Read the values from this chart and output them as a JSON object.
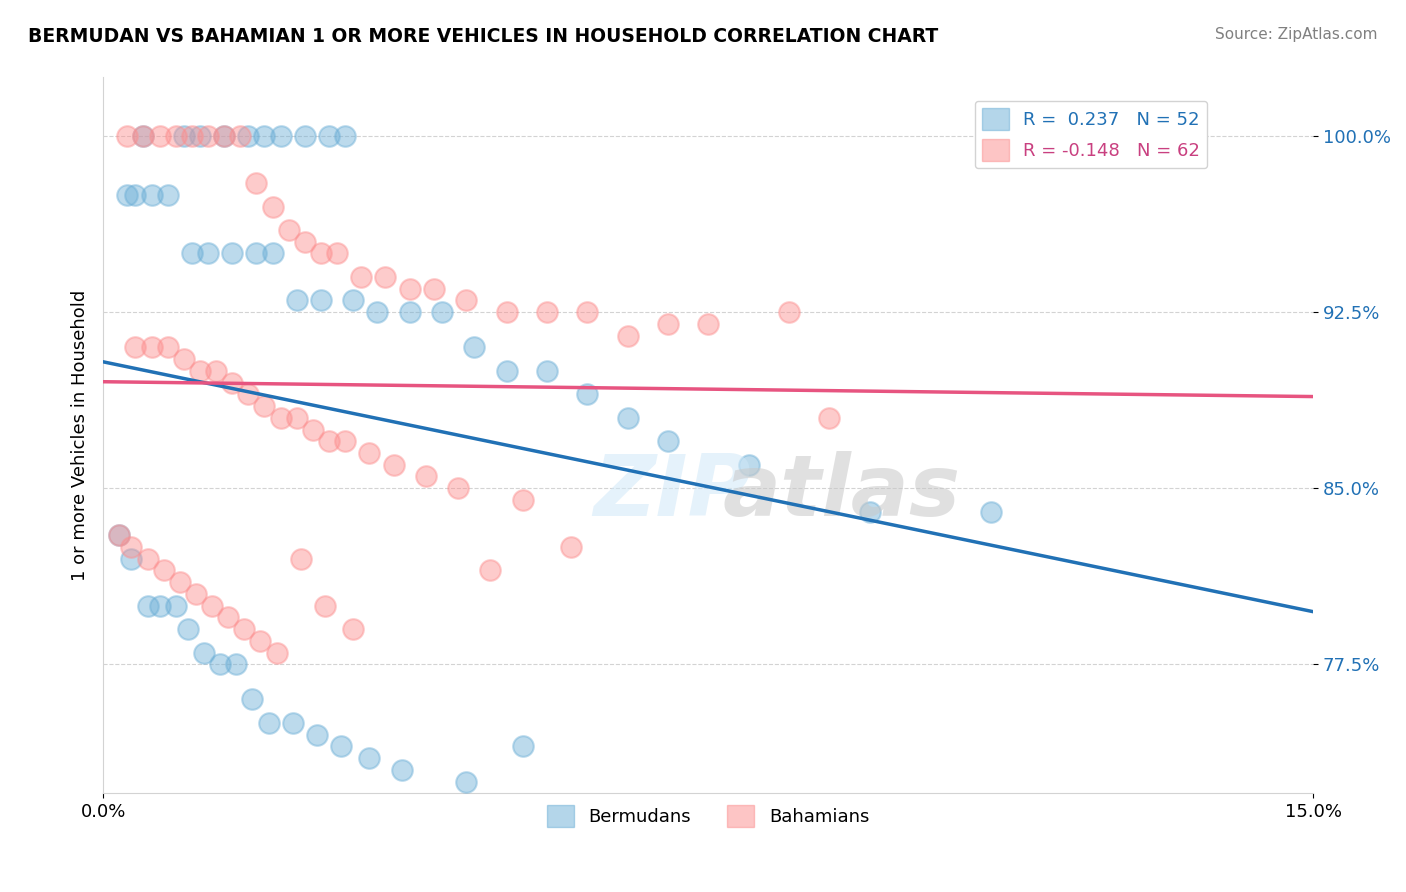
{
  "title": "BERMUDAN VS BAHAMIAN 1 OR MORE VEHICLES IN HOUSEHOLD CORRELATION CHART",
  "source_text": "Source: ZipAtlas.com",
  "ylabel": "1 or more Vehicles in Household",
  "xlim": [
    0.0,
    15.0
  ],
  "ylim": [
    72.0,
    102.5
  ],
  "yticks": [
    77.5,
    85.0,
    92.5,
    100.0
  ],
  "ytick_labels": [
    "77.5%",
    "85.0%",
    "92.5%",
    "100.0%"
  ],
  "bermudans_color": "#6baed6",
  "bahamians_color": "#fc8d8d",
  "line_bermudans_color": "#2171b5",
  "line_bahamians_color": "#e75480",
  "legend_text_blue": "#2171b5",
  "legend_text_pink": "#c94080",
  "R_bermudans": 0.237,
  "N_bermudans": 52,
  "R_bahamians": -0.148,
  "N_bahamians": 62,
  "bermudans_x": [
    0.5,
    1.0,
    1.2,
    1.5,
    1.8,
    2.0,
    2.2,
    2.5,
    2.8,
    3.0,
    0.3,
    0.4,
    0.6,
    0.8,
    1.1,
    1.3,
    1.6,
    1.9,
    2.1,
    2.4,
    2.7,
    3.1,
    3.4,
    3.8,
    4.2,
    4.6,
    5.0,
    5.5,
    6.0,
    6.5,
    7.0,
    8.0,
    9.5,
    11.0,
    0.2,
    0.35,
    0.55,
    0.7,
    0.9,
    1.05,
    1.25,
    1.45,
    1.65,
    1.85,
    2.05,
    2.35,
    2.65,
    2.95,
    3.3,
    3.7,
    4.5,
    5.2
  ],
  "bermudans_y": [
    100.0,
    100.0,
    100.0,
    100.0,
    100.0,
    100.0,
    100.0,
    100.0,
    100.0,
    100.0,
    97.5,
    97.5,
    97.5,
    97.5,
    95.0,
    95.0,
    95.0,
    95.0,
    95.0,
    93.0,
    93.0,
    93.0,
    92.5,
    92.5,
    92.5,
    91.0,
    90.0,
    90.0,
    89.0,
    88.0,
    87.0,
    86.0,
    84.0,
    84.0,
    83.0,
    82.0,
    80.0,
    80.0,
    80.0,
    79.0,
    78.0,
    77.5,
    77.5,
    76.0,
    75.0,
    75.0,
    74.5,
    74.0,
    73.5,
    73.0,
    72.5,
    74.0
  ],
  "bahamians_x": [
    0.3,
    0.5,
    0.7,
    0.9,
    1.1,
    1.3,
    1.5,
    1.7,
    1.9,
    2.1,
    2.3,
    2.5,
    2.7,
    2.9,
    3.2,
    3.5,
    3.8,
    4.1,
    4.5,
    5.0,
    5.5,
    6.0,
    7.0,
    8.5,
    0.4,
    0.6,
    0.8,
    1.0,
    1.2,
    1.4,
    1.6,
    1.8,
    2.0,
    2.2,
    2.4,
    2.6,
    2.8,
    3.0,
    3.3,
    3.6,
    4.0,
    4.4,
    5.2,
    6.5,
    0.2,
    0.35,
    0.55,
    0.75,
    0.95,
    1.15,
    1.35,
    1.55,
    1.75,
    1.95,
    2.15,
    2.45,
    2.75,
    3.1,
    4.8,
    7.5,
    9.0,
    5.8
  ],
  "bahamians_y": [
    100.0,
    100.0,
    100.0,
    100.0,
    100.0,
    100.0,
    100.0,
    100.0,
    98.0,
    97.0,
    96.0,
    95.5,
    95.0,
    95.0,
    94.0,
    94.0,
    93.5,
    93.5,
    93.0,
    92.5,
    92.5,
    92.5,
    92.0,
    92.5,
    91.0,
    91.0,
    91.0,
    90.5,
    90.0,
    90.0,
    89.5,
    89.0,
    88.5,
    88.0,
    88.0,
    87.5,
    87.0,
    87.0,
    86.5,
    86.0,
    85.5,
    85.0,
    84.5,
    91.5,
    83.0,
    82.5,
    82.0,
    81.5,
    81.0,
    80.5,
    80.0,
    79.5,
    79.0,
    78.5,
    78.0,
    82.0,
    80.0,
    79.0,
    81.5,
    92.0,
    88.0,
    82.5
  ]
}
